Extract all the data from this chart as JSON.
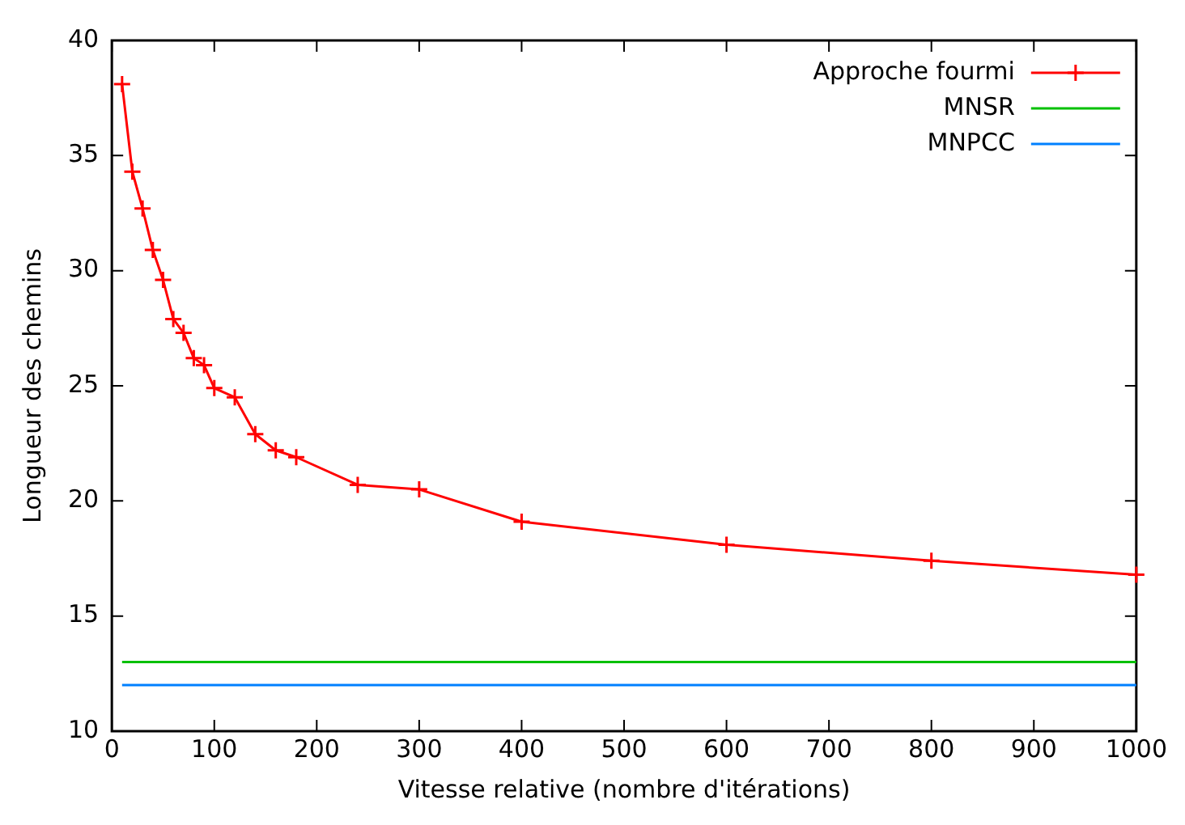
{
  "chart_data": {
    "type": "line",
    "xlabel": "Vitesse relative (nombre d'itérations)",
    "ylabel": "Longueur des chemins",
    "xlim": [
      0,
      1000
    ],
    "xticks": [
      0,
      100,
      200,
      300,
      400,
      500,
      600,
      700,
      800,
      900,
      1000
    ],
    "ylim": [
      10,
      40
    ],
    "yticks": [
      10,
      15,
      20,
      25,
      30,
      35,
      40
    ],
    "grid": false,
    "legend": "top right",
    "series": [
      {
        "name": "Approche fourmi",
        "color": "#ff0000",
        "marker": "cross",
        "x": [
          10,
          20,
          30,
          40,
          50,
          60,
          70,
          80,
          90,
          100,
          120,
          140,
          160,
          180,
          240,
          300,
          400,
          600,
          800,
          1000
        ],
        "values": [
          38.1,
          34.3,
          32.7,
          30.9,
          29.6,
          27.9,
          27.3,
          26.2,
          25.9,
          24.9,
          24.5,
          22.9,
          22.2,
          21.9,
          20.7,
          20.5,
          19.1,
          18.1,
          17.4,
          16.8
        ]
      },
      {
        "name": "MNSR",
        "color": "#00c000",
        "marker": "none",
        "x": [
          10,
          1000
        ],
        "values": [
          13,
          13
        ]
      },
      {
        "name": "MNPCC",
        "color": "#0080ff",
        "marker": "none",
        "x": [
          10,
          1000
        ],
        "values": [
          12,
          12
        ]
      }
    ]
  }
}
